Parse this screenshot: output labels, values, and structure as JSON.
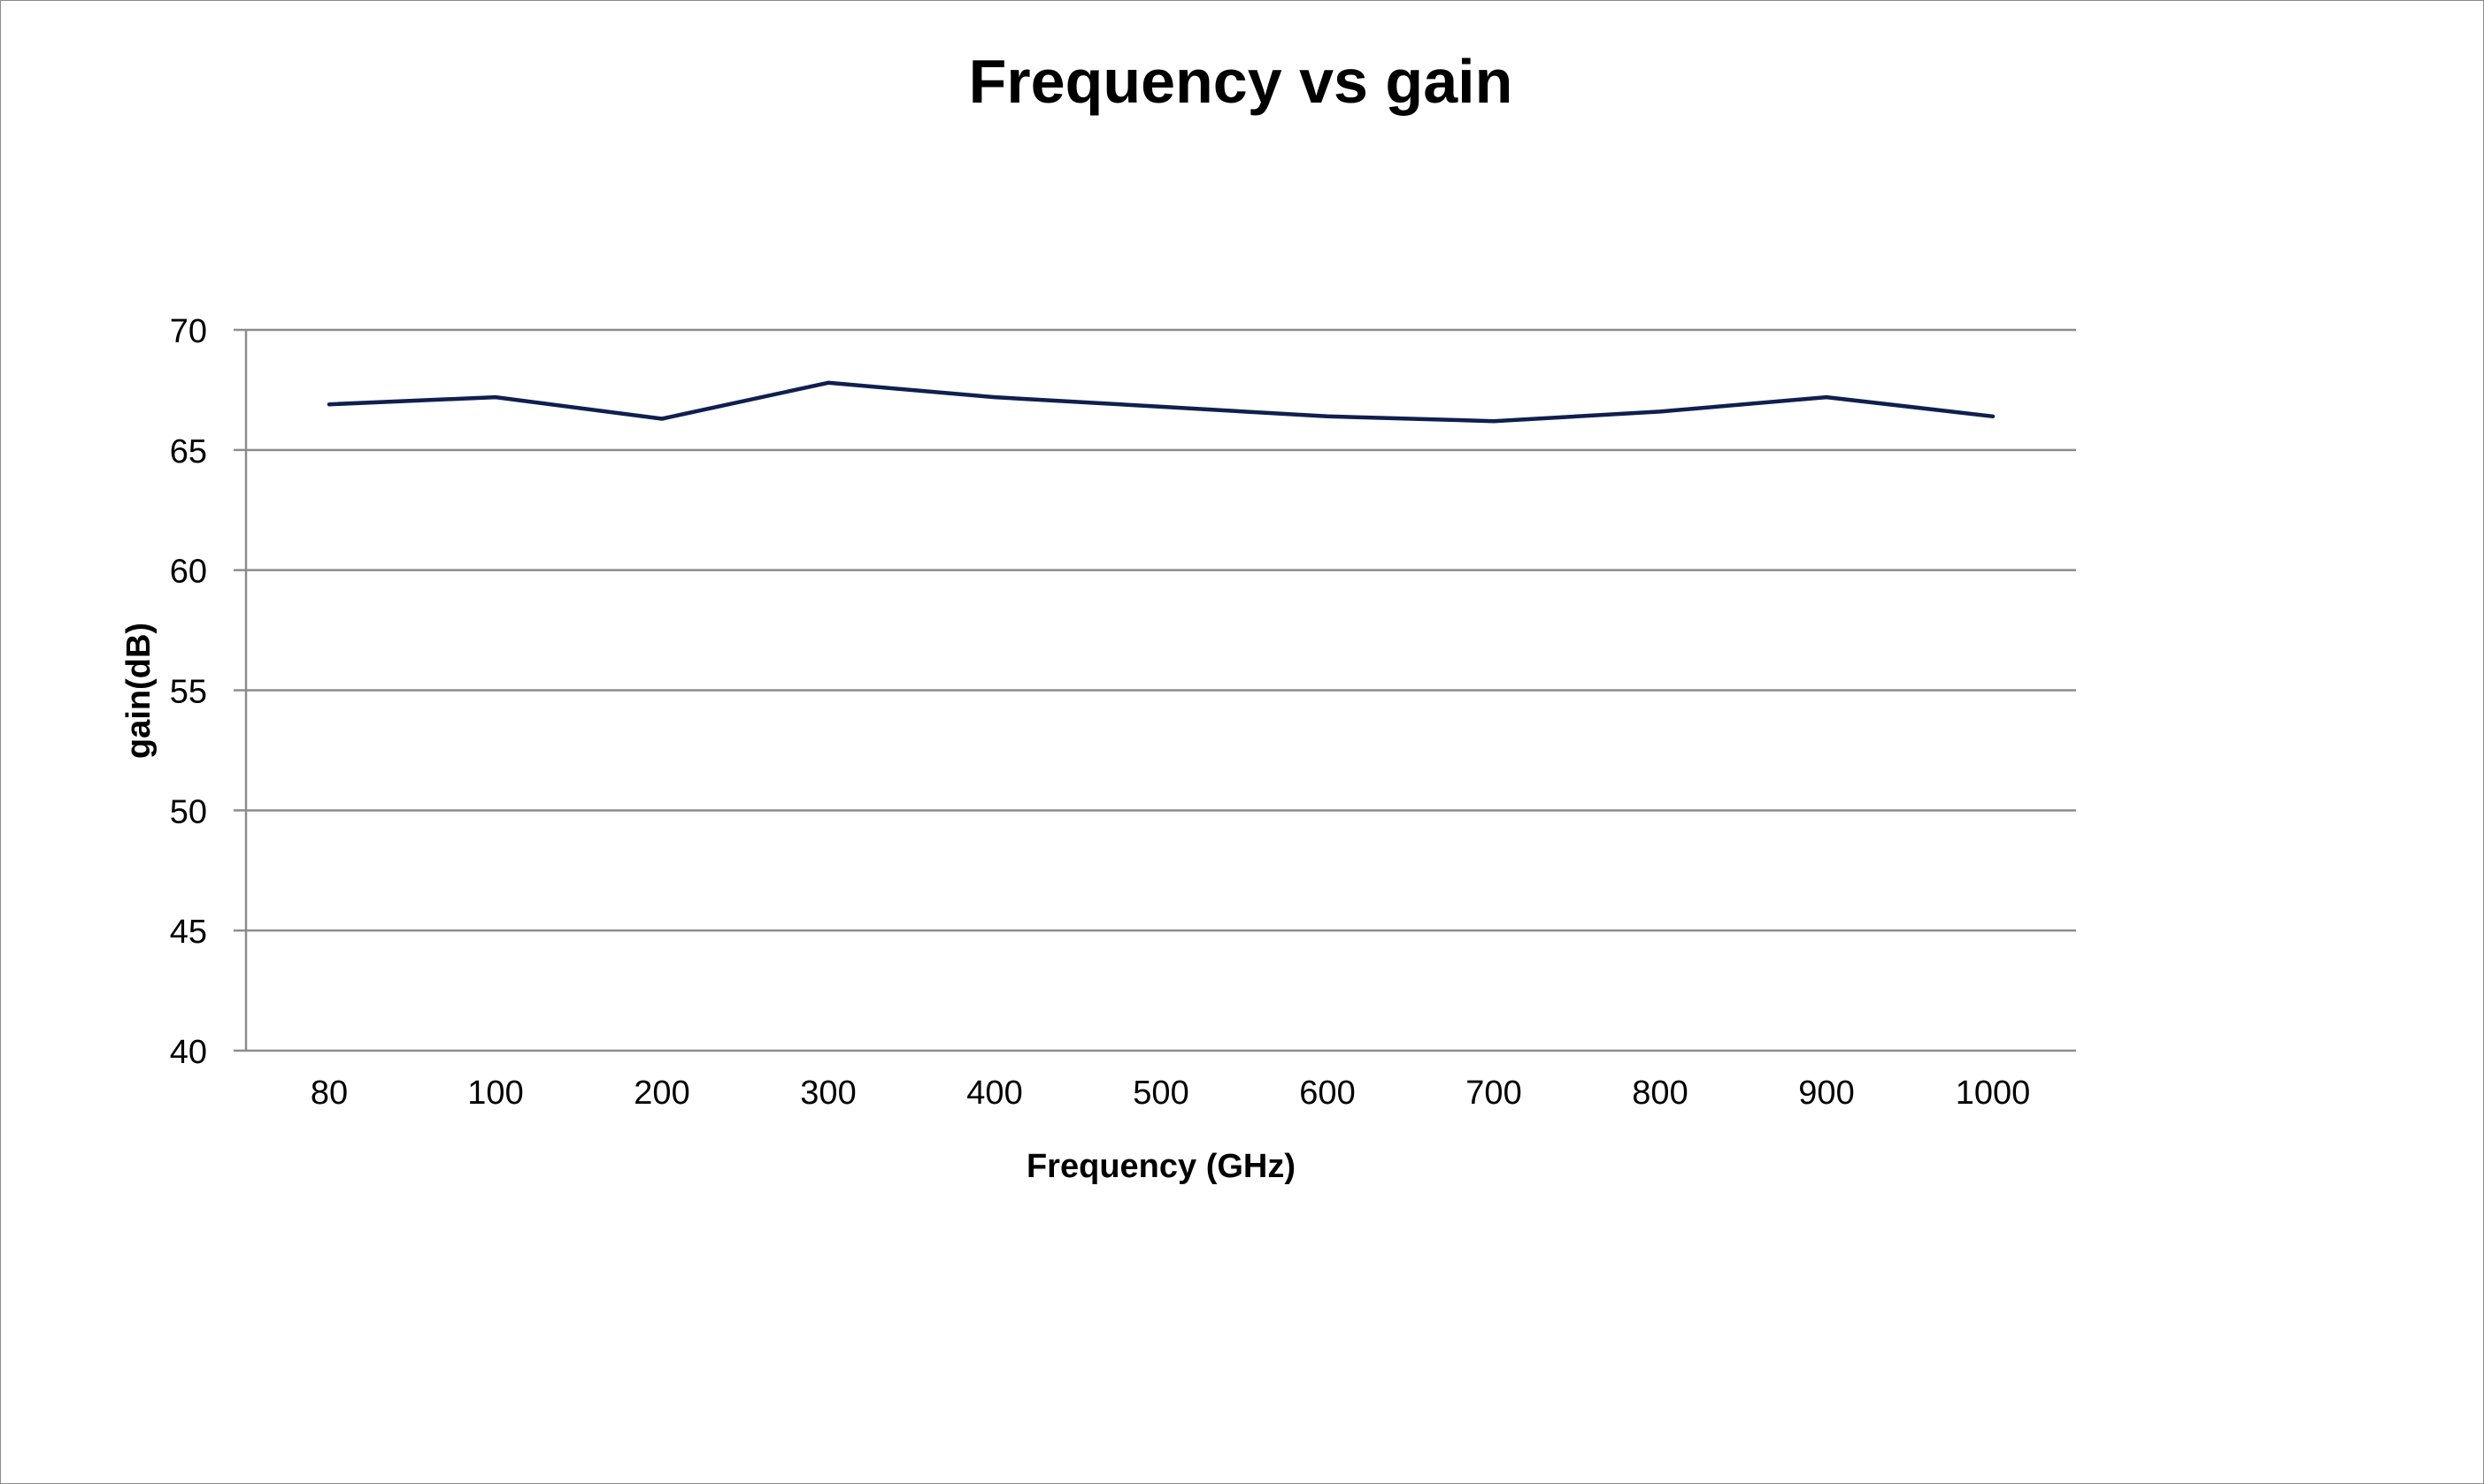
{
  "chart_data": {
    "type": "line",
    "title": "Frequency vs gain",
    "xlabel": "Frequency (GHz)",
    "ylabel": "gain(dB)",
    "categories": [
      "80",
      "100",
      "200",
      "300",
      "400",
      "500",
      "600",
      "700",
      "800",
      "900",
      "1000"
    ],
    "series": [
      {
        "values": [
          66.9,
          67.2,
          66.3,
          67.8,
          67.2,
          66.8,
          66.4,
          66.2,
          66.6,
          67.2,
          66.4
        ],
        "color": "#0f1f4f"
      }
    ],
    "ylim": [
      40,
      70
    ],
    "yticks": [
      "40",
      "45",
      "50",
      "55",
      "60",
      "65",
      "70"
    ],
    "grid": true,
    "legend": "none"
  }
}
